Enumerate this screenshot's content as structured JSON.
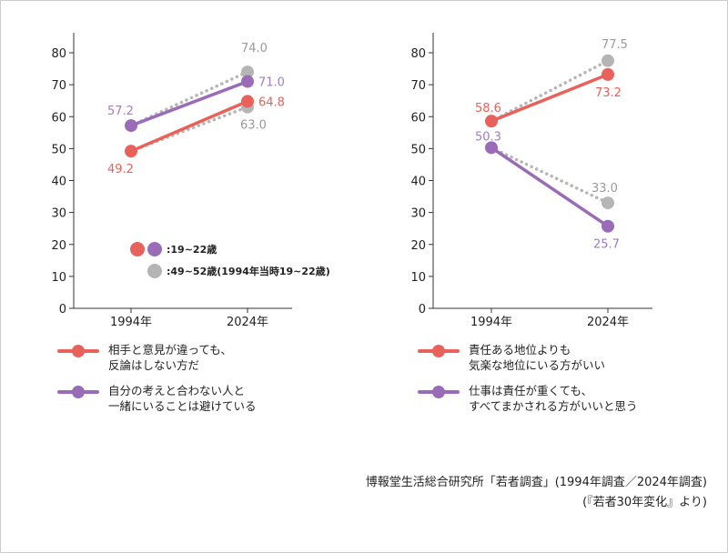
{
  "colors": {
    "red": "#e8625b",
    "purple": "#9a6cb8",
    "gray": "#b5b5b5",
    "red_text": "#e8625b",
    "purple_text": "#a27cc2",
    "gray_text": "#9a9a9a"
  },
  "chart_data": [
    {
      "type": "line",
      "categories": [
        "1994年",
        "2024年"
      ],
      "ylim": [
        0,
        80
      ],
      "yticks": [
        0,
        10,
        20,
        30,
        40,
        50,
        60,
        70,
        80
      ],
      "series": [
        {
          "name": "相手と意見が違っても、反論はしない方だ",
          "color": "red",
          "style": "solid",
          "values": [
            49.2,
            64.8
          ]
        },
        {
          "name": "自分の考えと合わない人と一緒にいることは避けている",
          "color": "purple",
          "style": "solid",
          "values": [
            57.2,
            71.0
          ]
        },
        {
          "color": "gray",
          "style": "dotted",
          "values": [
            57.2,
            74.0
          ]
        },
        {
          "color": "gray",
          "style": "dotted",
          "values": [
            49.2,
            63.0
          ]
        }
      ],
      "data_labels": [
        {
          "text": "57.2",
          "color": "purple_text"
        },
        {
          "text": "49.2",
          "color": "red_text"
        },
        {
          "text": "74.0",
          "color": "gray_text"
        },
        {
          "text": "71.0",
          "color": "purple_text"
        },
        {
          "text": "64.8",
          "color": "red_text"
        },
        {
          "text": "63.0",
          "color": "gray_text"
        }
      ],
      "marker_legend": [
        {
          "text": ":19~22歳"
        },
        {
          "text": ":49~52歳(1994年当時19~22歳)"
        }
      ]
    },
    {
      "type": "line",
      "categories": [
        "1994年",
        "2024年"
      ],
      "ylim": [
        0,
        80
      ],
      "yticks": [
        0,
        10,
        20,
        30,
        40,
        50,
        60,
        70,
        80
      ],
      "series": [
        {
          "name": "責任ある地位よりも気楽な地位にいる方がいい",
          "color": "red",
          "style": "solid",
          "values": [
            58.6,
            73.2
          ]
        },
        {
          "name": "仕事は責任が重くても、すべてまかされる方がいいと思う",
          "color": "purple",
          "style": "solid",
          "values": [
            50.3,
            25.7
          ]
        },
        {
          "color": "gray",
          "style": "dotted",
          "values": [
            58.6,
            77.5
          ]
        },
        {
          "color": "gray",
          "style": "dotted",
          "values": [
            50.3,
            33.0
          ]
        }
      ],
      "data_labels": [
        {
          "text": "58.6",
          "color": "red_text"
        },
        {
          "text": "50.3",
          "color": "purple_text"
        },
        {
          "text": "77.5",
          "color": "gray_text"
        },
        {
          "text": "73.2",
          "color": "red_text"
        },
        {
          "text": "33.0",
          "color": "gray_text"
        },
        {
          "text": "25.7",
          "color": "purple_text"
        }
      ]
    }
  ],
  "legend_left": [
    {
      "line1": "相手と意見が違っても、",
      "line2": "反論はしない方だ"
    },
    {
      "line1": "自分の考えと合わない人と",
      "line2": "一緒にいることは避けている"
    }
  ],
  "legend_right": [
    {
      "line1": "責任ある地位よりも",
      "line2": "気楽な地位にいる方がいい"
    },
    {
      "line1": "仕事は責任が重くても、",
      "line2": "すべてまかされる方がいいと思う"
    }
  ],
  "source": {
    "line1": "博報堂生活総合研究所「若者調査」(1994年調査／2024年調査)",
    "line2": "(『若者30年変化』より)"
  }
}
